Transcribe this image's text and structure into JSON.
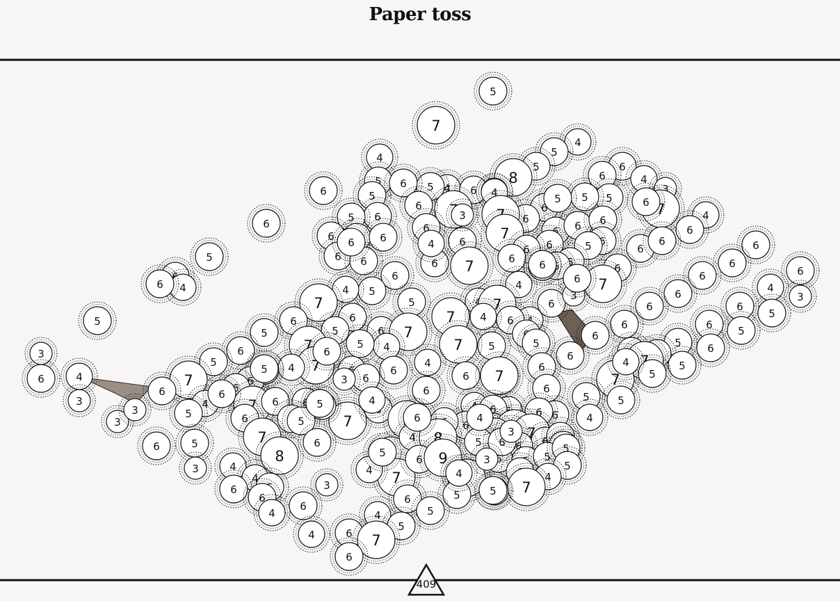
{
  "title": "Paper toss",
  "counter": "409",
  "colors": {
    "background": "#f7f5f5",
    "disc_fill": "#ffffff",
    "stroke": "#111111",
    "shape_fill": "#8a7e72",
    "shape_fill_dark": "#6f6056"
  },
  "discs": [
    {
      "n": 5
    },
    {
      "n": 7
    },
    {
      "n": 4
    },
    {
      "n": 4
    },
    {
      "n": 5
    },
    {
      "n": 5
    },
    {
      "n": 8
    },
    {
      "n": 6
    },
    {
      "n": 5
    },
    {
      "n": 6
    },
    {
      "n": 4
    },
    {
      "n": 6
    },
    {
      "n": 3
    },
    {
      "n": 4
    },
    {
      "n": 6
    },
    {
      "n": 5
    },
    {
      "n": 5
    },
    {
      "n": 6
    },
    {
      "n": 4
    },
    {
      "n": 7
    },
    {
      "n": 4
    },
    {
      "n": 4
    },
    {
      "n": 5
    },
    {
      "n": 7
    },
    {
      "n": 6
    },
    {
      "n": 5
    },
    {
      "n": 6
    },
    {
      "n": 6
    },
    {
      "n": 6
    },
    {
      "n": 5
    },
    {
      "n": 6
    },
    {
      "n": 6
    },
    {
      "n": 6
    },
    {
      "n": 5
    },
    {
      "n": 6
    },
    {
      "n": 6
    },
    {
      "n": 6
    },
    {
      "n": 7
    },
    {
      "n": 6
    },
    {
      "n": 6
    },
    {
      "n": 6
    },
    {
      "n": 7
    },
    {
      "n": 6
    },
    {
      "n": 6
    },
    {
      "n": 6
    },
    {
      "n": 6
    },
    {
      "n": 5
    },
    {
      "n": 6
    },
    {
      "n": 6
    },
    {
      "n": 5
    },
    {
      "n": 6
    },
    {
      "n": 6
    },
    {
      "n": 6
    },
    {
      "n": 6
    },
    {
      "n": 6
    },
    {
      "n": 6
    },
    {
      "n": 7
    },
    {
      "n": 5
    },
    {
      "n": 5
    },
    {
      "n": 6
    },
    {
      "n": 5
    },
    {
      "n": 6
    },
    {
      "n": 6
    },
    {
      "n": 4
    },
    {
      "n": 6
    },
    {
      "n": 6
    },
    {
      "n": 4
    },
    {
      "n": 6
    },
    {
      "n": 7
    },
    {
      "n": 6
    },
    {
      "n": 6
    },
    {
      "n": 5
    },
    {
      "n": 4
    },
    {
      "n": 4
    },
    {
      "n": 3
    },
    {
      "n": 3
    },
    {
      "n": 6
    },
    {
      "n": 5
    },
    {
      "n": 6
    },
    {
      "n": 3
    },
    {
      "n": 5
    },
    {
      "n": 4
    },
    {
      "n": 7
    },
    {
      "n": 6
    },
    {
      "n": 6
    },
    {
      "n": 7
    },
    {
      "n": 4
    },
    {
      "n": 7
    },
    {
      "n": 5
    },
    {
      "n": 6
    },
    {
      "n": 4
    },
    {
      "n": 6
    },
    {
      "n": 6
    },
    {
      "n": 6
    },
    {
      "n": 6
    },
    {
      "n": 6
    },
    {
      "n": 6
    },
    {
      "n": 5
    },
    {
      "n": 5
    },
    {
      "n": 7
    },
    {
      "n": 5
    },
    {
      "n": 6
    },
    {
      "n": 4
    },
    {
      "n": 5
    },
    {
      "n": 7
    },
    {
      "n": 5
    },
    {
      "n": 5
    },
    {
      "n": 5
    },
    {
      "n": 7
    },
    {
      "n": 6
    },
    {
      "n": 6
    },
    {
      "n": 6
    },
    {
      "n": 6
    },
    {
      "n": 5
    },
    {
      "n": 5
    },
    {
      "n": 7
    },
    {
      "n": 4
    },
    {
      "n": 4
    },
    {
      "n": 6
    },
    {
      "n": 5
    },
    {
      "n": 6
    },
    {
      "n": 6
    },
    {
      "n": 7
    },
    {
      "n": 6
    },
    {
      "n": 6
    },
    {
      "n": 7
    },
    {
      "n": 6
    },
    {
      "n": 6
    },
    {
      "n": 7
    },
    {
      "n": 4
    },
    {
      "n": 5
    },
    {
      "n": 7
    },
    {
      "n": 6
    },
    {
      "n": 6
    },
    {
      "n": 6
    },
    {
      "n": 6
    },
    {
      "n": 6
    },
    {
      "n": 5
    },
    {
      "n": 5
    },
    {
      "n": 3
    },
    {
      "n": 3
    },
    {
      "n": 4
    },
    {
      "n": 4
    },
    {
      "n": 3
    },
    {
      "n": 5
    },
    {
      "n": 7
    },
    {
      "n": 4
    },
    {
      "n": 6
    },
    {
      "n": 7
    },
    {
      "n": 6
    },
    {
      "n": 6
    },
    {
      "n": 6
    },
    {
      "n": 6
    },
    {
      "n": 6
    },
    {
      "n": 6
    },
    {
      "n": 6
    },
    {
      "n": 6
    },
    {
      "n": 9
    },
    {
      "n": 5
    },
    {
      "n": 6
    },
    {
      "n": 6
    },
    {
      "n": 7
    },
    {
      "n": 6
    },
    {
      "n": 5
    },
    {
      "n": 6
    },
    {
      "n": 6
    },
    {
      "n": 5
    },
    {
      "n": 7
    },
    {
      "n": 7
    },
    {
      "n": 8
    },
    {
      "n": 5
    },
    {
      "n": 7
    },
    {
      "n": 6
    },
    {
      "n": 4
    },
    {
      "n": 8
    },
    {
      "n": 6
    },
    {
      "n": 6
    },
    {
      "n": 6
    },
    {
      "n": 6
    },
    {
      "n": 5
    },
    {
      "n": 7
    },
    {
      "n": 6
    },
    {
      "n": 6
    },
    {
      "n": 5
    },
    {
      "n": 6
    },
    {
      "n": 6
    },
    {
      "n": 5
    },
    {
      "n": 5
    },
    {
      "n": 5
    },
    {
      "n": 4
    },
    {
      "n": 3
    },
    {
      "n": 4
    },
    {
      "n": 6
    },
    {
      "n": 9
    },
    {
      "n": 3
    },
    {
      "n": 4
    },
    {
      "n": 5
    },
    {
      "n": 4
    },
    {
      "n": 7
    },
    {
      "n": 7
    },
    {
      "n": 6
    },
    {
      "n": 6
    },
    {
      "n": 5
    },
    {
      "n": 6
    },
    {
      "n": 6
    },
    {
      "n": 5
    },
    {
      "n": 5
    },
    {
      "n": 4
    },
    {
      "n": 4
    },
    {
      "n": 5
    },
    {
      "n": 5
    },
    {
      "n": 6
    },
    {
      "n": 4
    },
    {
      "n": 7
    },
    {
      "n": 6
    },
    {
      "n": 3
    },
    {
      "n": 6
    },
    {
      "n": 4
    },
    {
      "n": 3
    },
    {
      "n": 5
    },
    {
      "n": 6
    },
    {
      "n": 6
    },
    {
      "n": 4
    },
    {
      "n": 5
    },
    {
      "n": 6
    },
    {
      "n": 4
    },
    {
      "n": 4
    },
    {
      "n": 6
    },
    {
      "n": 4
    },
    {
      "n": 3
    },
    {
      "n": 3
    },
    {
      "n": 5
    },
    {
      "n": 5
    },
    {
      "n": 6
    },
    {
      "n": 6
    },
    {
      "n": 6
    },
    {
      "n": 5
    },
    {
      "n": 6
    },
    {
      "n": 6
    },
    {
      "n": 6
    },
    {
      "n": 6
    },
    {
      "n": 6
    },
    {
      "n": 6
    },
    {
      "n": 6
    },
    {
      "n": 6
    },
    {
      "n": 6
    },
    {
      "n": 6
    },
    {
      "n": 6
    },
    {
      "n": 5
    },
    {
      "n": 6
    },
    {
      "n": 4
    }
  ]
}
